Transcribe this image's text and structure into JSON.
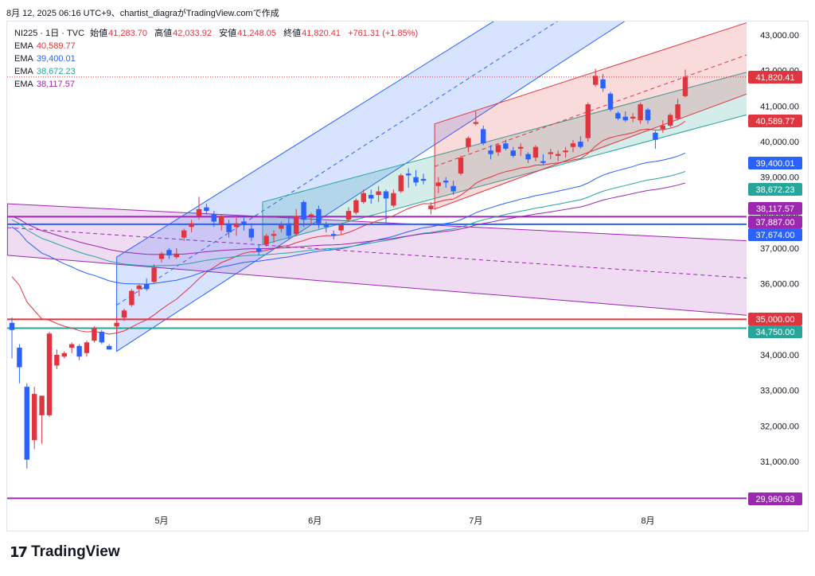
{
  "header": {
    "text": "8月 12, 2025 06:16 UTC+9、chartist_diagraがTradingView.comで作成"
  },
  "legend": {
    "symbol": "NI225 · 1日 · TVC",
    "open_label": "始値",
    "open": "41,283.70",
    "high_label": "高値",
    "high": "42,033.92",
    "low_label": "安値",
    "low": "41,248.05",
    "close_label": "終値",
    "close": "41,820.41",
    "change": "+761.31 (+1.85%)",
    "ema": [
      {
        "label": "EMA",
        "value": "40,589.77",
        "color": "#e0353f"
      },
      {
        "label": "EMA",
        "value": "39,400.01",
        "color": "#2962ff"
      },
      {
        "label": "EMA",
        "value": "38,672.23",
        "color": "#26a69a"
      },
      {
        "label": "EMA",
        "value": "38,117.57",
        "color": "#9c27b0"
      }
    ]
  },
  "footer": {
    "brand": "TradingView",
    "logo_icon": "tradingview-logo-icon"
  },
  "colors": {
    "up": "#e0353f",
    "down": "#2962ff",
    "ema_red": "#e0353f",
    "ema_blue": "#2962ff",
    "ema_green": "#26a69a",
    "ema_purple": "#9c27b0",
    "h_red": "#e0353f",
    "h_green": "#26a69a",
    "h_purple": "#9c27b0",
    "h_blue": "#2962ff"
  },
  "chart_data": {
    "type": "candlestick",
    "x_axis_labels": [
      "5月",
      "6月",
      "7月",
      "8月"
    ],
    "y_ticks": [
      43000,
      42000,
      41000,
      40000,
      39000,
      38000,
      37000,
      36000,
      35000,
      34000,
      33000,
      32000,
      31000
    ],
    "ylim": [
      29750,
      43400
    ],
    "horizontal_lines": [
      {
        "value": 37887,
        "color": "purple"
      },
      {
        "value": 37674,
        "color": "blue"
      },
      {
        "value": 35000,
        "color": "red"
      },
      {
        "value": 34750,
        "color": "green"
      },
      {
        "value": 29960.93,
        "color": "purple"
      }
    ],
    "price_labels": [
      {
        "text": "41,820.41",
        "value": 41820.41,
        "color": "#e0353f"
      },
      {
        "text": "40,589.77",
        "value": 40589.77,
        "color": "#e0353f"
      },
      {
        "text": "39,400.01",
        "value": 39400.01,
        "color": "#2962ff"
      },
      {
        "text": "38,672.23",
        "value": 38672.23,
        "color": "#26a69a"
      },
      {
        "text": "38,117.57",
        "value": 38117.57,
        "color": "#9c27b0"
      },
      {
        "text": "37,887.00",
        "value": 37887,
        "color": "#9c27b0"
      },
      {
        "text": "37,674.00",
        "value": 37674,
        "color": "#2962ff"
      },
      {
        "text": "35,000.00",
        "value": 35000,
        "color": "#e0353f"
      },
      {
        "text": "34,750.00",
        "value": 34750,
        "color": "#26a69a"
      },
      {
        "text": "29,960.93",
        "value": 29960.93,
        "color": "#9c27b0"
      }
    ],
    "candles": [
      {
        "o": 34900,
        "h": 35050,
        "l": 33900,
        "c": 34700
      },
      {
        "o": 34200,
        "h": 34300,
        "l": 33200,
        "c": 33650
      },
      {
        "o": 33100,
        "h": 33200,
        "l": 30800,
        "c": 31050
      },
      {
        "o": 31600,
        "h": 33100,
        "l": 31350,
        "c": 32900
      },
      {
        "o": 32300,
        "h": 32800,
        "l": 31500,
        "c": 32850
      },
      {
        "o": 32300,
        "h": 34650,
        "l": 32250,
        "c": 34600
      },
      {
        "o": 33700,
        "h": 34150,
        "l": 33600,
        "c": 34000
      },
      {
        "o": 33950,
        "h": 34100,
        "l": 33900,
        "c": 34050
      },
      {
        "o": 34200,
        "h": 34350,
        "l": 34050,
        "c": 34300
      },
      {
        "o": 34250,
        "h": 34300,
        "l": 33850,
        "c": 33950
      },
      {
        "o": 34050,
        "h": 34400,
        "l": 33950,
        "c": 34350
      },
      {
        "o": 34400,
        "h": 34800,
        "l": 34350,
        "c": 34750
      },
      {
        "o": 34650,
        "h": 34700,
        "l": 34300,
        "c": 34350
      },
      {
        "o": 34250,
        "h": 34300,
        "l": 34150,
        "c": 34150
      },
      {
        "o": 34800,
        "h": 35100,
        "l": 34600,
        "c": 34900
      },
      {
        "o": 35050,
        "h": 35300,
        "l": 34950,
        "c": 35250
      },
      {
        "o": 35400,
        "h": 35850,
        "l": 35350,
        "c": 35800
      },
      {
        "o": 35850,
        "h": 36000,
        "l": 35650,
        "c": 35950
      },
      {
        "o": 36000,
        "h": 36150,
        "l": 35800,
        "c": 35850
      },
      {
        "o": 36050,
        "h": 36550,
        "l": 36000,
        "c": 36450
      },
      {
        "o": 36700,
        "h": 36900,
        "l": 36600,
        "c": 36850
      },
      {
        "o": 36950,
        "h": 37000,
        "l": 36700,
        "c": 36800
      },
      {
        "o": 36750,
        "h": 37000,
        "l": 36700,
        "c": 36850
      },
      {
        "o": 37300,
        "h": 37550,
        "l": 37200,
        "c": 37500
      },
      {
        "o": 37600,
        "h": 37800,
        "l": 37450,
        "c": 37700
      },
      {
        "o": 37900,
        "h": 38450,
        "l": 37800,
        "c": 38100
      },
      {
        "o": 38150,
        "h": 38250,
        "l": 37950,
        "c": 38050
      },
      {
        "o": 37950,
        "h": 38050,
        "l": 37600,
        "c": 37750
      },
      {
        "o": 37650,
        "h": 37950,
        "l": 37500,
        "c": 37900
      },
      {
        "o": 37700,
        "h": 37800,
        "l": 37300,
        "c": 37450
      },
      {
        "o": 37600,
        "h": 37850,
        "l": 37350,
        "c": 37700
      },
      {
        "o": 37750,
        "h": 37900,
        "l": 37500,
        "c": 37650
      },
      {
        "o": 37550,
        "h": 37700,
        "l": 37200,
        "c": 37300
      },
      {
        "o": 37000,
        "h": 37100,
        "l": 36800,
        "c": 36900
      },
      {
        "o": 37100,
        "h": 37400,
        "l": 37050,
        "c": 37350
      },
      {
        "o": 37350,
        "h": 37500,
        "l": 37150,
        "c": 37400
      },
      {
        "o": 37550,
        "h": 37750,
        "l": 37450,
        "c": 37650
      },
      {
        "o": 37700,
        "h": 37850,
        "l": 37250,
        "c": 37350
      },
      {
        "o": 37400,
        "h": 38100,
        "l": 37350,
        "c": 37900
      },
      {
        "o": 38300,
        "h": 38350,
        "l": 37600,
        "c": 37800
      },
      {
        "o": 37900,
        "h": 38000,
        "l": 37650,
        "c": 37950
      },
      {
        "o": 38100,
        "h": 38200,
        "l": 37550,
        "c": 37700
      },
      {
        "o": 37650,
        "h": 37750,
        "l": 37450,
        "c": 37600
      },
      {
        "o": 37400,
        "h": 37500,
        "l": 37250,
        "c": 37350
      },
      {
        "o": 37500,
        "h": 37700,
        "l": 37400,
        "c": 37650
      },
      {
        "o": 37800,
        "h": 38150,
        "l": 37750,
        "c": 38050
      },
      {
        "o": 38000,
        "h": 38400,
        "l": 37950,
        "c": 38350
      },
      {
        "o": 38300,
        "h": 38650,
        "l": 38250,
        "c": 38550
      },
      {
        "o": 38500,
        "h": 38650,
        "l": 38250,
        "c": 38400
      },
      {
        "o": 38500,
        "h": 38750,
        "l": 38300,
        "c": 38600
      },
      {
        "o": 38600,
        "h": 38650,
        "l": 37700,
        "c": 38400
      },
      {
        "o": 38200,
        "h": 38650,
        "l": 38150,
        "c": 38550
      },
      {
        "o": 38600,
        "h": 39100,
        "l": 38550,
        "c": 39050
      },
      {
        "o": 39100,
        "h": 39250,
        "l": 38700,
        "c": 39050
      },
      {
        "o": 39000,
        "h": 39200,
        "l": 38750,
        "c": 38850
      },
      {
        "o": 38950,
        "h": 39100,
        "l": 38800,
        "c": 38900
      },
      {
        "o": 38100,
        "h": 38300,
        "l": 37950,
        "c": 38200
      },
      {
        "o": 38750,
        "h": 39000,
        "l": 38550,
        "c": 38850
      },
      {
        "o": 38900,
        "h": 39000,
        "l": 38700,
        "c": 38850
      },
      {
        "o": 38750,
        "h": 38900,
        "l": 38500,
        "c": 38600
      },
      {
        "o": 39100,
        "h": 39600,
        "l": 39050,
        "c": 39550
      },
      {
        "o": 39850,
        "h": 40150,
        "l": 39700,
        "c": 40100
      },
      {
        "o": 40500,
        "h": 40850,
        "l": 40450,
        "c": 40550
      },
      {
        "o": 40350,
        "h": 40450,
        "l": 39900,
        "c": 39950
      },
      {
        "o": 39750,
        "h": 39900,
        "l": 39500,
        "c": 39650
      },
      {
        "o": 39700,
        "h": 39950,
        "l": 39600,
        "c": 39900
      },
      {
        "o": 39950,
        "h": 40050,
        "l": 39750,
        "c": 39800
      },
      {
        "o": 39750,
        "h": 39850,
        "l": 39550,
        "c": 39600
      },
      {
        "o": 39800,
        "h": 39950,
        "l": 39600,
        "c": 39850
      },
      {
        "o": 39650,
        "h": 39700,
        "l": 39400,
        "c": 39500
      },
      {
        "o": 39550,
        "h": 39900,
        "l": 39450,
        "c": 39850
      },
      {
        "o": 39450,
        "h": 39650,
        "l": 39350,
        "c": 39400
      },
      {
        "o": 39650,
        "h": 39800,
        "l": 39500,
        "c": 39700
      },
      {
        "o": 39600,
        "h": 39750,
        "l": 39450,
        "c": 39650
      },
      {
        "o": 39700,
        "h": 39850,
        "l": 39550,
        "c": 39750
      },
      {
        "o": 39850,
        "h": 40050,
        "l": 39700,
        "c": 39950
      },
      {
        "o": 40000,
        "h": 40150,
        "l": 39800,
        "c": 39850
      },
      {
        "o": 40100,
        "h": 41100,
        "l": 40000,
        "c": 41050
      },
      {
        "o": 41600,
        "h": 42050,
        "l": 41550,
        "c": 41850
      },
      {
        "o": 41750,
        "h": 41900,
        "l": 41400,
        "c": 41500
      },
      {
        "o": 41350,
        "h": 41400,
        "l": 40850,
        "c": 40900
      },
      {
        "o": 40800,
        "h": 40850,
        "l": 40600,
        "c": 40650
      },
      {
        "o": 40700,
        "h": 40850,
        "l": 40550,
        "c": 40600
      },
      {
        "o": 40650,
        "h": 40800,
        "l": 40550,
        "c": 40700
      },
      {
        "o": 40600,
        "h": 41100,
        "l": 40500,
        "c": 41050
      },
      {
        "o": 40900,
        "h": 40950,
        "l": 40500,
        "c": 40600
      },
      {
        "o": 40250,
        "h": 40300,
        "l": 39800,
        "c": 40050
      },
      {
        "o": 40350,
        "h": 40600,
        "l": 40250,
        "c": 40450
      },
      {
        "o": 40450,
        "h": 40800,
        "l": 40400,
        "c": 40750
      },
      {
        "o": 40650,
        "h": 41200,
        "l": 40600,
        "c": 41050
      },
      {
        "o": 41280,
        "h": 42030,
        "l": 41240,
        "c": 41820
      }
    ]
  }
}
